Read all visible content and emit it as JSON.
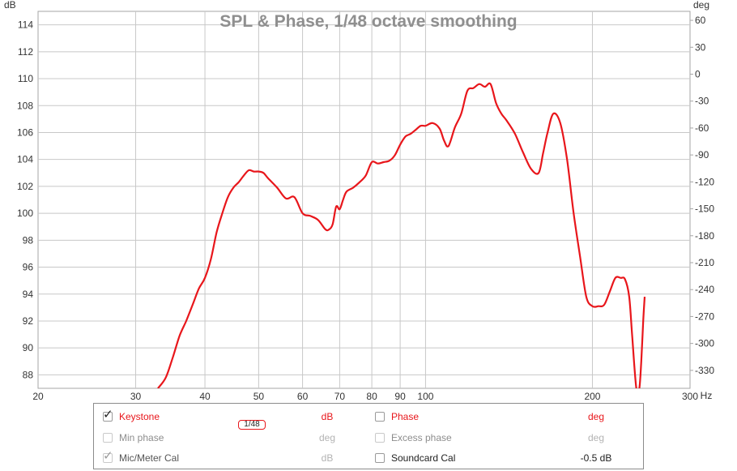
{
  "chart_data": {
    "type": "line",
    "title": "SPL & Phase, 1/48 octave smoothing",
    "y_left_label": "dB",
    "y_right_label": "deg",
    "x_unit": "Hz",
    "x_scale": "log",
    "xlim": [
      20,
      300
    ],
    "ylim_left": [
      87,
      115
    ],
    "ylim_right": [
      -350,
      70
    ],
    "x_ticks": [
      20,
      30,
      40,
      50,
      60,
      70,
      80,
      90,
      100,
      200,
      300
    ],
    "x_tick_labels": [
      "20",
      "30",
      "40",
      "50",
      "60",
      "70",
      "80",
      "90",
      "100",
      "200",
      "300"
    ],
    "y_left_ticks": [
      88,
      90,
      92,
      94,
      96,
      98,
      100,
      102,
      104,
      106,
      108,
      110,
      112,
      114
    ],
    "y_right_ticks": [
      60,
      30,
      0,
      -30,
      -60,
      -90,
      -120,
      -150,
      -180,
      -210,
      -240,
      -270,
      -300,
      -330
    ],
    "grid": true,
    "series": [
      {
        "name": "Keystone",
        "color": "#e8161b",
        "x": [
          32.9,
          34,
          35,
          36,
          37,
          38,
          39,
          40,
          41,
          42,
          43,
          44,
          45,
          46,
          47,
          48,
          49,
          50,
          51,
          52,
          54,
          56,
          58,
          60,
          62,
          64,
          66,
          67,
          68,
          69,
          70,
          71,
          72,
          74,
          76,
          78,
          80,
          82,
          84,
          86,
          88,
          90,
          92,
          94,
          96,
          98,
          100,
          103,
          106,
          108,
          110,
          113,
          116,
          119,
          122,
          125,
          128,
          131,
          134,
          137,
          140,
          145,
          150,
          155,
          160,
          163,
          166,
          170,
          175,
          180,
          185,
          190,
          195,
          200,
          205,
          210,
          215,
          220,
          225,
          229,
          233,
          236,
          240,
          243,
          245,
          247,
          248.5
        ],
        "values": [
          87,
          87.8,
          89.3,
          90.9,
          92.0,
          93.2,
          94.4,
          95.2,
          96.6,
          98.6,
          100.0,
          101.2,
          101.9,
          102.3,
          102.8,
          103.2,
          103.1,
          103.1,
          103.0,
          102.6,
          101.9,
          101.1,
          101.2,
          100.0,
          99.8,
          99.5,
          98.8,
          98.8,
          99.2,
          100.5,
          100.3,
          101.0,
          101.6,
          101.9,
          102.3,
          102.8,
          103.8,
          103.7,
          103.8,
          103.9,
          104.3,
          105.1,
          105.7,
          105.9,
          106.2,
          106.5,
          106.5,
          106.7,
          106.3,
          105.4,
          105.0,
          106.4,
          107.4,
          109.1,
          109.3,
          109.6,
          109.4,
          109.6,
          108.2,
          107.4,
          106.9,
          105.9,
          104.5,
          103.3,
          103.0,
          104.5,
          106.0,
          107.4,
          106.7,
          104.0,
          100.0,
          96.8,
          93.8,
          93.1,
          93.1,
          93.2,
          94.2,
          95.2,
          95.2,
          95.1,
          93.8,
          90.8,
          87.0,
          87.0,
          89.0,
          92.0,
          93.8
        ]
      }
    ]
  },
  "legend": {
    "rows": [
      {
        "left": {
          "label": "Keystone",
          "checked": true,
          "enabled": true,
          "smoothing": "1/48",
          "unit": "dB"
        },
        "right": {
          "label": "Phase",
          "checked": false,
          "enabled": true,
          "unit": "deg"
        }
      },
      {
        "left": {
          "label": "Min phase",
          "checked": false,
          "enabled": false,
          "unit": "deg"
        },
        "right": {
          "label": "Excess phase",
          "checked": false,
          "enabled": false,
          "unit": "deg"
        }
      },
      {
        "left": {
          "label": "Mic/Meter Cal",
          "checked": true,
          "enabled": false,
          "unit": "dB"
        },
        "right": {
          "label": "Soundcard Cal",
          "checked": false,
          "enabled": true,
          "unit": "-0.5 dB"
        }
      }
    ]
  }
}
